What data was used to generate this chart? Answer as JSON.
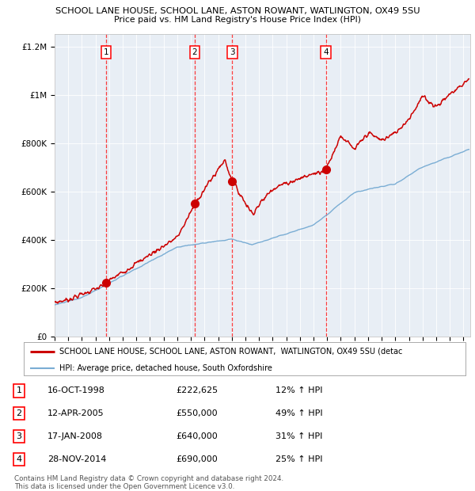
{
  "title1": "SCHOOL LANE HOUSE, SCHOOL LANE, ASTON ROWANT, WATLINGTON, OX49 5SU",
  "title2": "Price paid vs. HM Land Registry's House Price Index (HPI)",
  "plot_bg": "#e8eef5",
  "transactions": [
    {
      "num": 1,
      "date": "16-OCT-1998",
      "price": 222625,
      "pct": "12% ↑ HPI",
      "x_year": 1998.79
    },
    {
      "num": 2,
      "date": "12-APR-2005",
      "price": 550000,
      "pct": "49% ↑ HPI",
      "x_year": 2005.28
    },
    {
      "num": 3,
      "date": "17-JAN-2008",
      "price": 640000,
      "pct": "31% ↑ HPI",
      "x_year": 2008.04
    },
    {
      "num": 4,
      "date": "28-NOV-2014",
      "price": 690000,
      "pct": "25% ↑ HPI",
      "x_year": 2014.91
    }
  ],
  "ylim": [
    0,
    1250000
  ],
  "xlim": [
    1995.0,
    2025.5
  ],
  "yticks": [
    0,
    200000,
    400000,
    600000,
    800000,
    1000000,
    1200000
  ],
  "ytick_labels": [
    "£0",
    "£200K",
    "£400K",
    "£600K",
    "£800K",
    "£1M",
    "£1.2M"
  ],
  "xticks": [
    1995,
    1996,
    1997,
    1998,
    1999,
    2000,
    2001,
    2002,
    2003,
    2004,
    2005,
    2006,
    2007,
    2008,
    2009,
    2010,
    2011,
    2012,
    2013,
    2014,
    2015,
    2016,
    2017,
    2018,
    2019,
    2020,
    2021,
    2022,
    2023,
    2024,
    2025
  ],
  "legend_line1": "SCHOOL LANE HOUSE, SCHOOL LANE, ASTON ROWANT,  WATLINGTON, OX49 5SU (detac",
  "legend_line2": "HPI: Average price, detached house, South Oxfordshire",
  "footnote1": "Contains HM Land Registry data © Crown copyright and database right 2024.",
  "footnote2": "This data is licensed under the Open Government Licence v3.0.",
  "red_color": "#cc0000",
  "blue_color": "#7aadd4",
  "table_data": [
    [
      1,
      "16-OCT-1998",
      "£222,625",
      "12% ↑ HPI"
    ],
    [
      2,
      "12-APR-2005",
      "£550,000",
      "49% ↑ HPI"
    ],
    [
      3,
      "17-JAN-2008",
      "£640,000",
      "31% ↑ HPI"
    ],
    [
      4,
      "28-NOV-2014",
      "£690,000",
      "25% ↑ HPI"
    ]
  ]
}
